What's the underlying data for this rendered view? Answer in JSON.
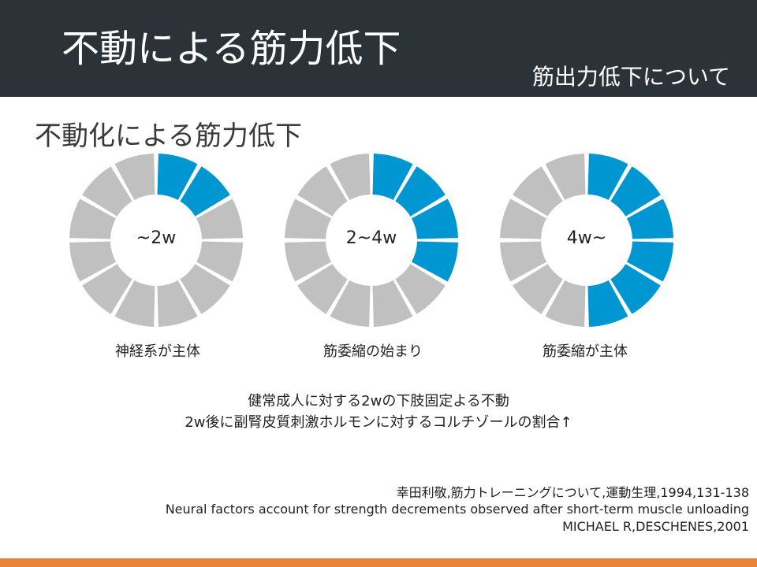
{
  "header": {
    "title": "不動による筋力低下",
    "subtitle": "筋出力低下について"
  },
  "section_heading": "不動化による筋力低下",
  "colors": {
    "header_bg": "#2b3339",
    "active_segment": "#0096d1",
    "inactive_segment": "#c0c0c0",
    "bottom_bar": "#e8833a"
  },
  "chart_data": [
    {
      "type": "pie",
      "label": "~2w",
      "caption": "神経系が主体",
      "total_segments": 12,
      "active_segments": 2
    },
    {
      "type": "pie",
      "label": "2~4w",
      "caption": "筋委縮の始まり",
      "total_segments": 12,
      "active_segments": 4
    },
    {
      "type": "pie",
      "label": "4w~",
      "caption": "筋委縮が主体",
      "total_segments": 12,
      "active_segments": 6
    }
  ],
  "notes": [
    "健常成人に対する2wの下肢固定よる不動",
    "2w後に副腎皮質刺激ホルモンに対するコルチゾールの割合↑"
  ],
  "references": [
    "幸田利敬,筋力トレーニングについて,運動生理,1994,131-138",
    "Neural factors account for strength decrements observed after short-term muscle unloading",
    "MICHAEL R,DESCHENES,2001"
  ]
}
